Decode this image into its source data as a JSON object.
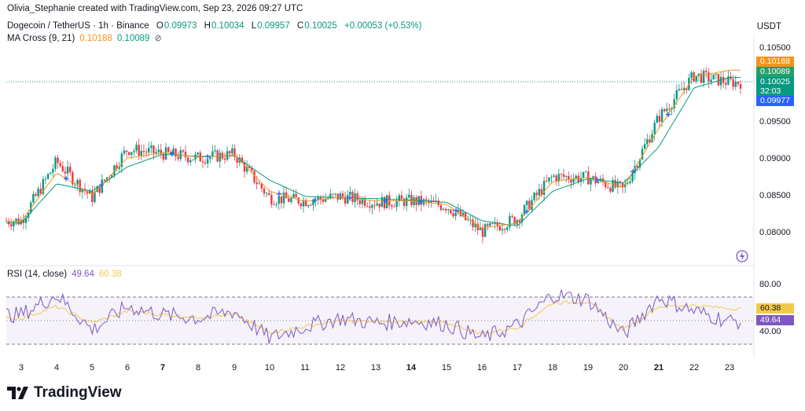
{
  "header": {
    "title": "Olivia_Stephanie created with TradingView.com, Sep 23, 2026 09:27 UTC"
  },
  "symbol": {
    "name": "Dogecoin / TetherUS · 1h · Binance",
    "o_label": "O",
    "o_value": "0.09973",
    "h_label": "H",
    "h_value": "0.10034",
    "l_label": "L",
    "l_value": "0.09957",
    "c_label": "C",
    "c_value": "0.10025",
    "change": "+0.00053 (+0.53%)"
  },
  "ma": {
    "label": "MA Cross (9, 21)",
    "fast": "0.10188",
    "slow": "0.10089",
    "eye_icon": "eye-crossed-icon"
  },
  "rsi": {
    "label": "RSI (14, close)",
    "value": "49.64",
    "ma_value": "60.38",
    "tag_value": "49.64",
    "tag_ma": "60.38",
    "ticks": [
      "80.00",
      "40.00"
    ]
  },
  "axis": {
    "currency": "USDT",
    "price_ticks": [
      "0.10500",
      "0.09500",
      "0.09000",
      "0.08500",
      "0.08000"
    ],
    "x_ticks": [
      {
        "label": "3",
        "bold": false
      },
      {
        "label": "4",
        "bold": false
      },
      {
        "label": "5",
        "bold": false
      },
      {
        "label": "6",
        "bold": false
      },
      {
        "label": "7",
        "bold": true
      },
      {
        "label": "8",
        "bold": false
      },
      {
        "label": "9",
        "bold": false
      },
      {
        "label": "10",
        "bold": false
      },
      {
        "label": "11",
        "bold": false
      },
      {
        "label": "12",
        "bold": false
      },
      {
        "label": "13",
        "bold": false
      },
      {
        "label": "14",
        "bold": true
      },
      {
        "label": "15",
        "bold": false
      },
      {
        "label": "16",
        "bold": false
      },
      {
        "label": "17",
        "bold": false
      },
      {
        "label": "18",
        "bold": false
      },
      {
        "label": "19",
        "bold": false
      },
      {
        "label": "20",
        "bold": false
      },
      {
        "label": "21",
        "bold": true
      },
      {
        "label": "22",
        "bold": false
      },
      {
        "label": "23",
        "bold": false
      }
    ]
  },
  "price_tags": {
    "ma_fast": "0.10188",
    "ma_slow": "0.10089",
    "last": "0.10025",
    "countdown": "32:03",
    "low": "0.09977"
  },
  "brand": {
    "name": "TradingView"
  },
  "colors": {
    "up": "#089981",
    "down": "#f23645",
    "ma_fast": "#f7931a",
    "ma_slow": "#089981",
    "rsi": "#7e57c2",
    "rsi_ma": "#f2c94c",
    "cross": "#2962ff",
    "low_tag": "#2962ff"
  },
  "chart_data": [
    {
      "type": "candlestick",
      "title": "Dogecoin / TetherUS · 1h · Binance",
      "xlabel": "",
      "ylabel": "USDT",
      "x": [
        "3",
        "4",
        "5",
        "6",
        "7",
        "8",
        "9",
        "10",
        "11",
        "12",
        "13",
        "14",
        "15",
        "16",
        "17",
        "18",
        "19",
        "20",
        "21",
        "22",
        "23"
      ],
      "ylim": [
        0.0776,
        0.1066
      ],
      "series": [
        {
          "name": "close",
          "values": [
            0.0815,
            0.0895,
            0.0846,
            0.0912,
            0.0906,
            0.09,
            0.0905,
            0.0846,
            0.0842,
            0.0848,
            0.084,
            0.0842,
            0.0835,
            0.08,
            0.0818,
            0.0875,
            0.0873,
            0.0857,
            0.0955,
            0.1012,
            0.10025
          ]
        },
        {
          "name": "MA 9",
          "values": [
            0.0814,
            0.088,
            0.085,
            0.09,
            0.0907,
            0.0901,
            0.0904,
            0.0855,
            0.0841,
            0.0847,
            0.0842,
            0.0842,
            0.0837,
            0.0805,
            0.0812,
            0.0868,
            0.0874,
            0.086,
            0.094,
            0.101,
            0.10188
          ]
        },
        {
          "name": "MA 21",
          "values": [
            0.0812,
            0.0865,
            0.0855,
            0.0888,
            0.0905,
            0.0902,
            0.0903,
            0.087,
            0.0848,
            0.0846,
            0.0845,
            0.0843,
            0.084,
            0.0815,
            0.0808,
            0.0855,
            0.0872,
            0.0866,
            0.0915,
            0.0995,
            0.10089
          ]
        }
      ],
      "ma_cross_dates": [
        "4",
        "5",
        "7",
        "8",
        "10",
        "11",
        "12",
        "13",
        "14",
        "15",
        "17",
        "19",
        "20",
        "21"
      ],
      "grid": false,
      "legend": "top-left"
    },
    {
      "type": "line",
      "title": "RSI (14, close)",
      "x": [
        "3",
        "4",
        "5",
        "6",
        "7",
        "8",
        "9",
        "10",
        "11",
        "12",
        "13",
        "14",
        "15",
        "16",
        "17",
        "18",
        "19",
        "20",
        "21",
        "22",
        "23"
      ],
      "ylim": [
        25,
        95
      ],
      "series": [
        {
          "name": "RSI",
          "values": [
            55,
            72,
            42,
            62,
            55,
            52,
            58,
            35,
            45,
            52,
            48,
            50,
            47,
            35,
            46,
            72,
            68,
            38,
            70,
            58,
            49.64
          ]
        },
        {
          "name": "RSI MA",
          "values": [
            52,
            62,
            48,
            58,
            55,
            53,
            55,
            40,
            45,
            50,
            49,
            49,
            48,
            39,
            44,
            65,
            66,
            42,
            62,
            63,
            60.38
          ]
        }
      ],
      "levels": [
        70,
        50,
        30
      ]
    }
  ]
}
